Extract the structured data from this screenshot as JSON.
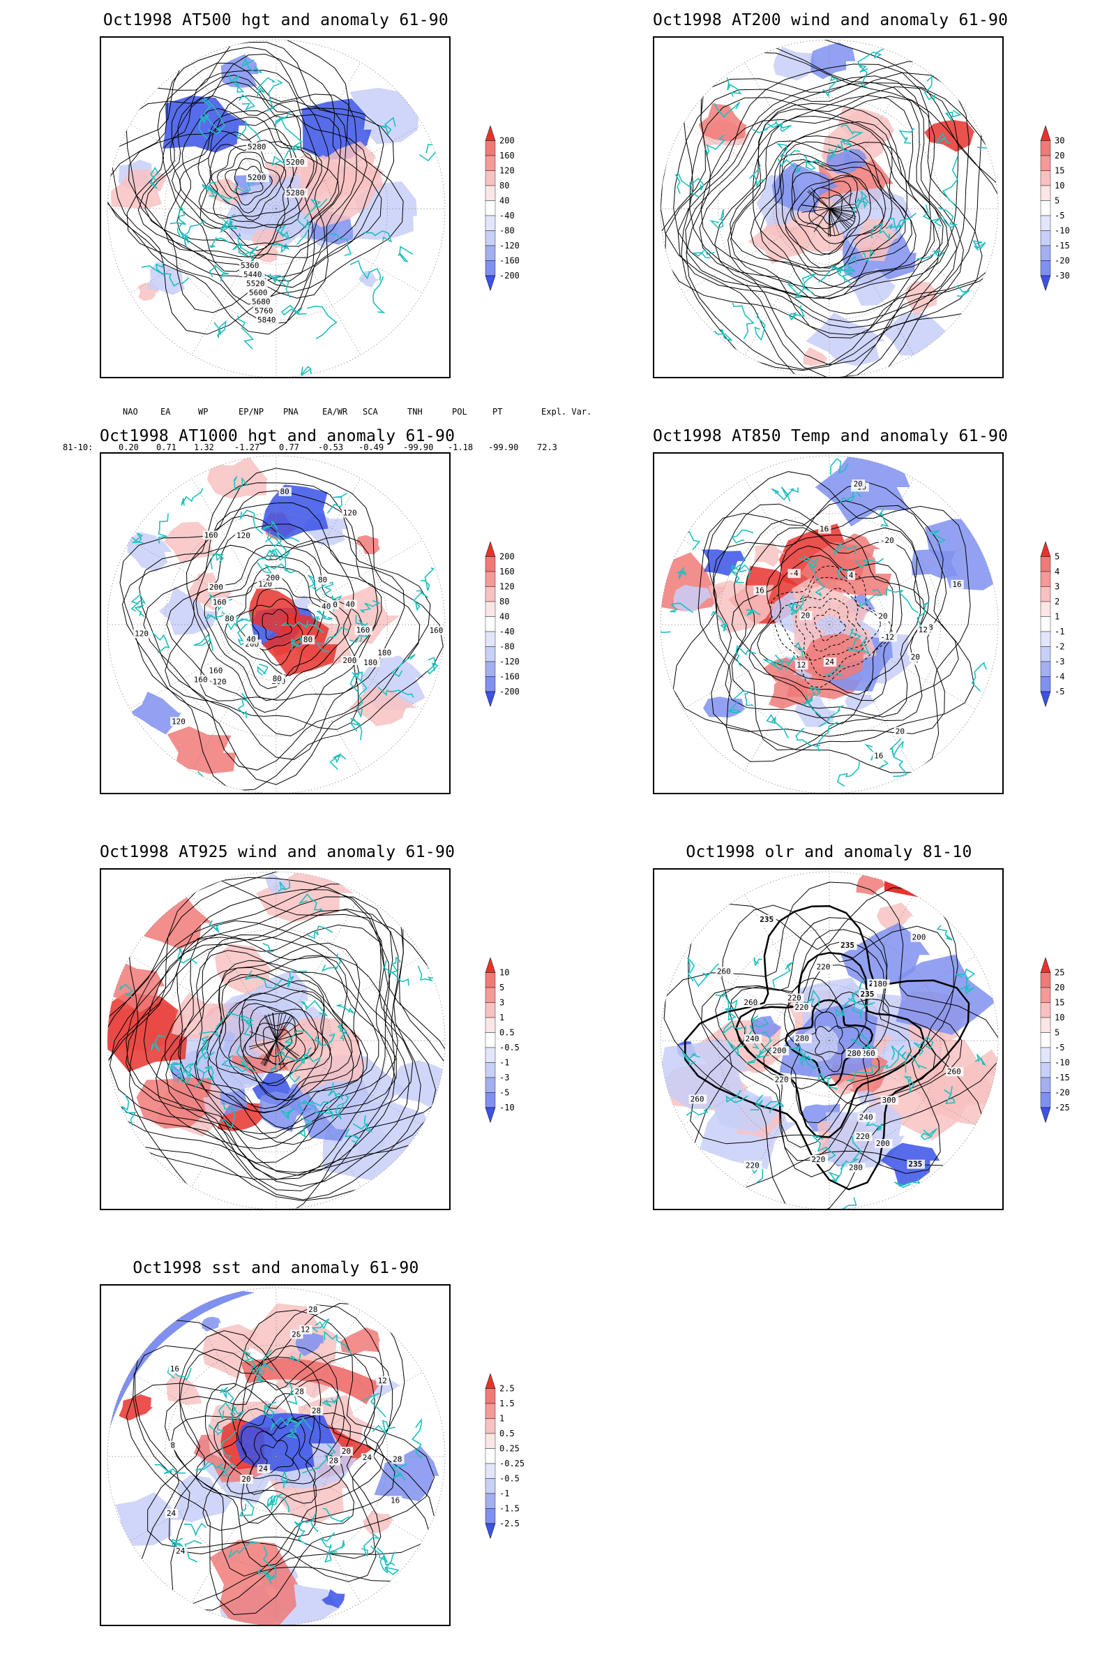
{
  "colors": {
    "coast": "#1fbfbf",
    "contour": "#000000",
    "red_strong": "#e8322e",
    "red_mid": "#f07a78",
    "red_light": "#f8c2c2",
    "blue_strong": "#3a52e8",
    "blue_mid": "#7f90f0",
    "blue_light": "#c8cff8"
  },
  "panels": [
    {
      "id": "p500",
      "title": "Oct1998 AT500 hgt and anomaly 61-90",
      "colorbar": [
        "200",
        "160",
        "120",
        "80",
        "40",
        "-40",
        "-80",
        "-120",
        "-160",
        "-200"
      ],
      "contour_labels": [
        "5280",
        "5200",
        "5200",
        "5280",
        "5360",
        "5440",
        "5520",
        "5600",
        "5680",
        "5760",
        "5840"
      ]
    },
    {
      "id": "p200",
      "title": "Oct1998 AT200 wind and anomaly 61-90",
      "colorbar": [
        "30",
        "20",
        "15",
        "10",
        "5",
        "-5",
        "-10",
        "-15",
        "-20",
        "-30"
      ],
      "contour_labels": []
    },
    {
      "id": "p1000",
      "title": "Oct1998 AT1000 hgt and anomaly 61-90",
      "colorbar": [
        "200",
        "160",
        "120",
        "80",
        "40",
        "-40",
        "-80",
        "-120",
        "-160",
        "-200"
      ],
      "contour_labels": [
        "120",
        "160",
        "200",
        "120",
        "80",
        "160",
        "180",
        "40",
        "120",
        "200",
        "200",
        "80",
        "80",
        "40",
        "160",
        "40",
        "0",
        "120",
        "160",
        "200",
        "120",
        "180",
        "200",
        "160",
        "120",
        "80",
        "80",
        "160"
      ]
    },
    {
      "id": "p850",
      "title": "Oct1998 AT850 Temp and anomaly 61-90",
      "colorbar": [
        "5",
        "4",
        "3",
        "2",
        "1",
        "-1",
        "-2",
        "-3",
        "-4",
        "-5"
      ],
      "contour_labels": [
        "16",
        "12",
        "16",
        "20",
        "-12",
        "4",
        "-16",
        "-20",
        "-4",
        "-8",
        "4",
        "12",
        "16",
        "20",
        "24",
        "20",
        "20",
        "16",
        "20"
      ]
    },
    {
      "id": "p925",
      "title": "Oct1998 AT925 wind and anomaly 61-90",
      "colorbar": [
        "10",
        "5",
        "3",
        "1",
        "0.5",
        "-0.5",
        "-1",
        "-3",
        "-5",
        "-10"
      ],
      "contour_labels": []
    },
    {
      "id": "polr",
      "title": "Oct1998 olr and anomaly 81-10",
      "colorbar": [
        "25",
        "20",
        "15",
        "10",
        "5",
        "-5",
        "-10",
        "-15",
        "-20",
        "-25"
      ],
      "contour_labels": [
        "280",
        "260",
        "260",
        "235",
        "220",
        "220",
        "240",
        "220",
        "235",
        "200",
        "220",
        "180",
        "200",
        "220",
        "235",
        "240",
        "260",
        "280",
        "300",
        "235",
        "260",
        "260",
        "235",
        "280",
        "220",
        "200",
        "220"
      ]
    },
    {
      "id": "psst",
      "title": "Oct1998 sst and anomaly 61-90",
      "colorbar": [
        "2.5",
        "1.5",
        "1",
        "0.5",
        "0.25",
        "-0.25",
        "-0.5",
        "-1",
        "-1.5",
        "-2.5"
      ],
      "contour_labels": [
        "28",
        "24",
        "28",
        "24",
        "20",
        "16",
        "12",
        "8",
        "24",
        "28",
        "16",
        "12",
        "20",
        "24",
        "28",
        "28",
        "28"
      ]
    }
  ],
  "indices": {
    "header": [
      "NAO",
      "EA",
      "WP",
      "EP/NP",
      "PNA",
      "EA/WR",
      "SCA",
      "TNH",
      "POL",
      "PT",
      "Expl. Var."
    ],
    "row_label": "81-10:",
    "values": [
      "0.20",
      "0.71",
      "1.32",
      "-1.27",
      "0.77",
      "-0.53",
      "-0.49",
      "-99.90",
      "-1.18",
      "-99.90",
      "72.3"
    ]
  }
}
